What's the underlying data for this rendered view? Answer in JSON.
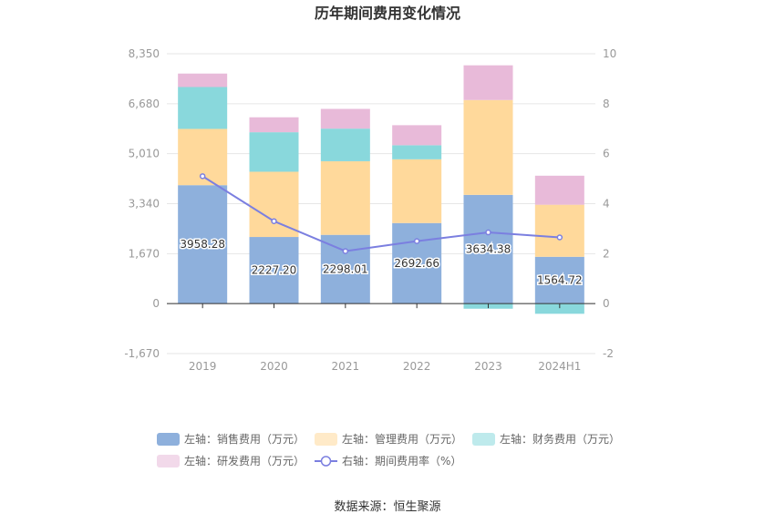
{
  "chart_data": {
    "type": "bar",
    "title": "历年期间费用变化情况",
    "categories": [
      "2019",
      "2020",
      "2021",
      "2022",
      "2023",
      "2024H1"
    ],
    "stacked": true,
    "left_axis": {
      "ylim": [
        -1670,
        8350
      ],
      "ticks": [
        "-1,670",
        "0",
        "1,670",
        "3,340",
        "5,010",
        "6,680",
        "8,350"
      ],
      "tick_values": [
        -1670,
        0,
        1670,
        3340,
        5010,
        6680,
        8350
      ]
    },
    "right_axis": {
      "ylim": [
        -2,
        10
      ],
      "ticks": [
        "-2",
        "0",
        "2",
        "4",
        "6",
        "8",
        "10"
      ],
      "tick_values": [
        -2,
        0,
        2,
        4,
        6,
        8,
        10
      ]
    },
    "series": [
      {
        "name": "左轴：销售费用（万元）",
        "axis": "left",
        "type": "bar",
        "color": "#8eb0dc",
        "values": [
          3958.28,
          2227.2,
          2298.01,
          2692.66,
          3634.38,
          1564.72
        ],
        "labels": [
          "3958.28",
          "2227.20",
          "2298.01",
          "2692.66",
          "3634.38",
          "1564.72"
        ]
      },
      {
        "name": "左轴：管理费用（万元）",
        "axis": "left",
        "type": "bar",
        "color": "#ffd99b",
        "values": [
          1880,
          2180,
          2460,
          2130,
          3170,
          1740
        ]
      },
      {
        "name": "左轴：财务费用（万元）",
        "axis": "left",
        "type": "bar",
        "color": "#89d8dc",
        "values": [
          1400,
          1320,
          1090,
          470,
          -170,
          -340
        ]
      },
      {
        "name": "左轴：研发费用（万元）",
        "axis": "left",
        "type": "bar",
        "color": "#e8bad9",
        "values": [
          450,
          500,
          660,
          670,
          1160,
          970
        ]
      },
      {
        "name": "右轴：期间费用率（%）",
        "axis": "right",
        "type": "line",
        "color": "#7b7fe0",
        "values": [
          5.1,
          3.3,
          2.1,
          2.5,
          2.85,
          2.65
        ]
      }
    ],
    "legend_position": "bottom",
    "grid": true
  },
  "source": "数据来源：恒生聚源"
}
